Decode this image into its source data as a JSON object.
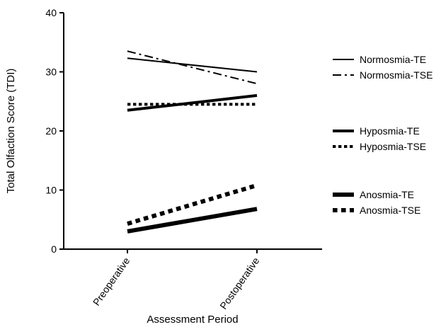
{
  "chart_data": {
    "type": "line",
    "xlabel": "Assessment Period",
    "ylabel": "Total Olfaction Score (TDI)",
    "categories": [
      "Preoperative",
      "Postoperative"
    ],
    "ylim": [
      0,
      40
    ],
    "yticks": [
      "0",
      "10",
      "20",
      "30",
      "40"
    ],
    "grid": false,
    "legend_position": "right",
    "series": [
      {
        "name": "Normosmia-TE",
        "values": [
          32.3,
          30.0
        ],
        "style": "solid",
        "weight": "thin"
      },
      {
        "name": "Normosmia-TSE",
        "values": [
          33.5,
          28.0
        ],
        "style": "dashdot",
        "weight": "thin"
      },
      {
        "name": "Hyposmia-TE",
        "values": [
          23.5,
          26.0
        ],
        "style": "solid",
        "weight": "medium"
      },
      {
        "name": "Hyposmia-TSE",
        "values": [
          24.5,
          24.5
        ],
        "style": "dotted",
        "weight": "medium"
      },
      {
        "name": "Anosmia-TE",
        "values": [
          3.0,
          6.8
        ],
        "style": "solid",
        "weight": "thick"
      },
      {
        "name": "Anosmia-TSE",
        "values": [
          4.3,
          10.8
        ],
        "style": "dotted",
        "weight": "thick"
      }
    ],
    "colors": {
      "line": "#000000",
      "background": "#ffffff"
    }
  }
}
